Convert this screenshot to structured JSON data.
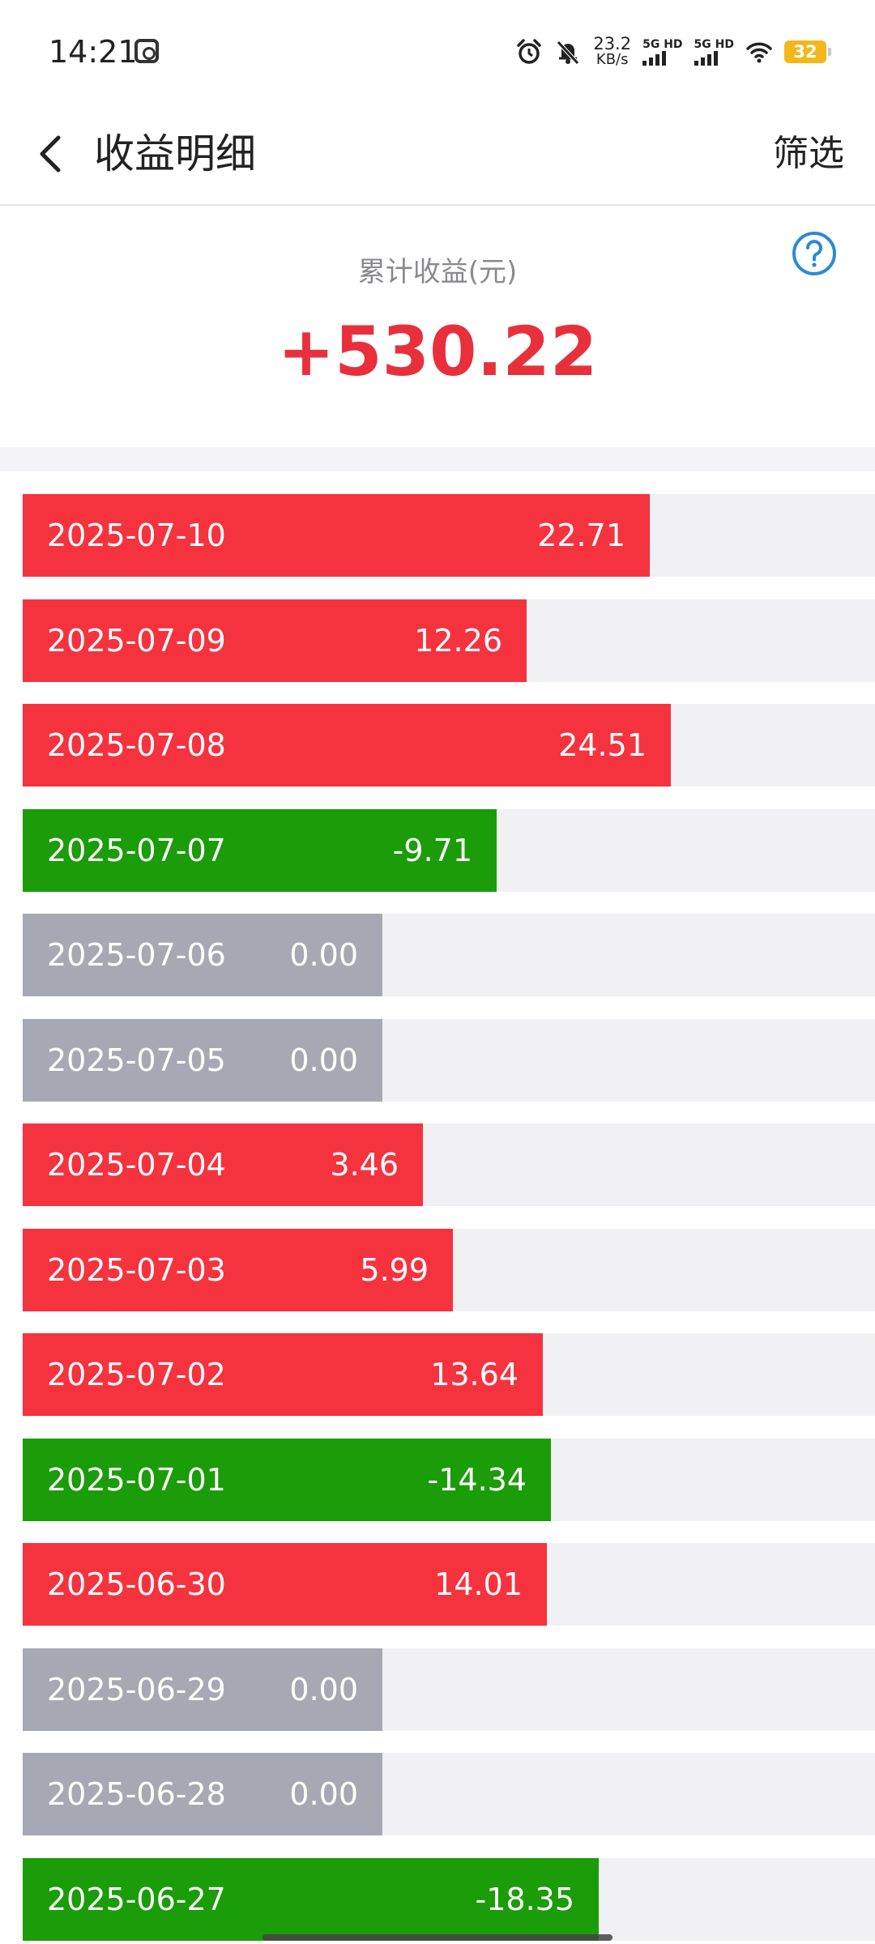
{
  "status_bar": {
    "time": "14:21",
    "net_speed_value": "23.2",
    "net_speed_unit": "KB/s",
    "sim1_label": "5G HD",
    "sim2_label": "5G HD",
    "battery": "32",
    "icons": [
      "gallery-icon",
      "alarm-icon",
      "mute-icon",
      "signal-icon",
      "wifi-icon",
      "battery-icon"
    ]
  },
  "header": {
    "title": "收益明细",
    "filter_label": "筛选",
    "back_icon": "chevron-left-icon"
  },
  "summary": {
    "label": "累计收益(元)",
    "value": "+530.22",
    "help_icon": "help-circle-icon"
  },
  "colors": {
    "positive": "#f5333f",
    "negative": "#1b9c09",
    "zero": "#a6a9b4",
    "track": "#f1f1f4",
    "summary_value": "#e8303d",
    "help_blue": "#2a8ad6"
  },
  "scale_max": 24.51,
  "entries": [
    {
      "date": "2025-07-10",
      "amount": "22.71",
      "value": 22.71
    },
    {
      "date": "2025-07-09",
      "amount": "12.26",
      "value": 12.26
    },
    {
      "date": "2025-07-08",
      "amount": "24.51",
      "value": 24.51
    },
    {
      "date": "2025-07-07",
      "amount": "-9.71",
      "value": -9.71
    },
    {
      "date": "2025-07-06",
      "amount": "0.00",
      "value": 0
    },
    {
      "date": "2025-07-05",
      "amount": "0.00",
      "value": 0
    },
    {
      "date": "2025-07-04",
      "amount": "3.46",
      "value": 3.46
    },
    {
      "date": "2025-07-03",
      "amount": "5.99",
      "value": 5.99
    },
    {
      "date": "2025-07-02",
      "amount": "13.64",
      "value": 13.64
    },
    {
      "date": "2025-07-01",
      "amount": "-14.34",
      "value": -14.34
    },
    {
      "date": "2025-06-30",
      "amount": "14.01",
      "value": 14.01
    },
    {
      "date": "2025-06-29",
      "amount": "0.00",
      "value": 0
    },
    {
      "date": "2025-06-28",
      "amount": "0.00",
      "value": 0
    },
    {
      "date": "2025-06-27",
      "amount": "-18.35",
      "value": -18.35
    }
  ]
}
